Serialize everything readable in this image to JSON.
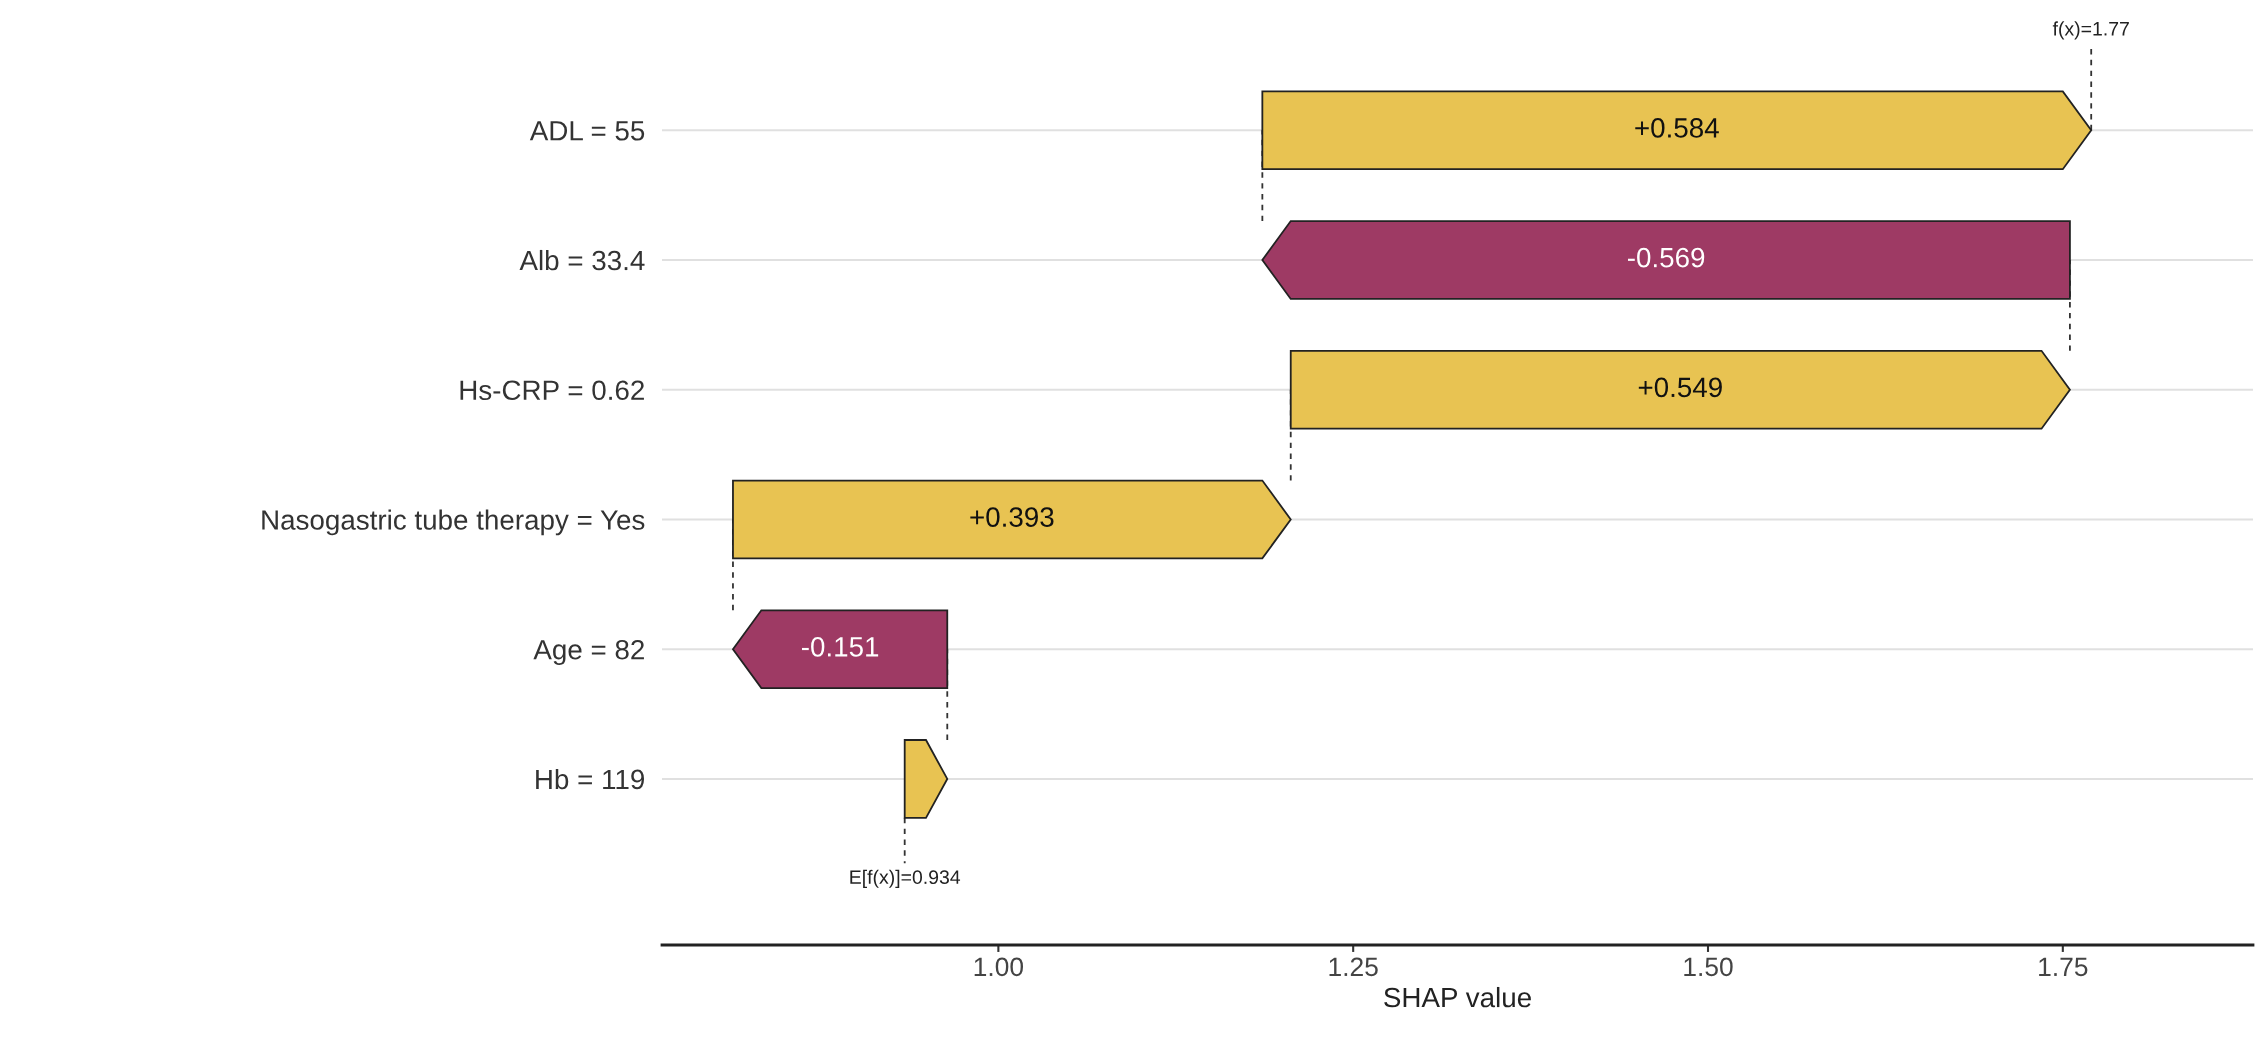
{
  "chart_data": {
    "type": "bar",
    "orientation": "horizontal",
    "xlabel": "SHAP value",
    "categories": [
      "ADL = 55",
      "Alb = 33.4",
      "Hs-CRP = 0.62",
      "Nasogastric tube therapy = Yes",
      "Age = 82",
      "Hb = 119"
    ],
    "base": [
      1.186,
      1.755,
      1.206,
      0.813,
      0.964,
      0.934
    ],
    "values": [
      0.584,
      -0.569,
      0.549,
      0.393,
      -0.151,
      0.03
    ],
    "value_labels": [
      "+0.584",
      "-0.569",
      "+0.549",
      "+0.393",
      "-0.151",
      null
    ],
    "colors": [
      "#e8c352",
      "#9e3a64",
      "#e8c352",
      "#e8c352",
      "#9e3a64",
      "#e8c352"
    ],
    "xlim": [
      0.763,
      1.884
    ],
    "xticks": [
      {
        "value": 1.0,
        "label": "1.00"
      },
      {
        "value": 1.25,
        "label": "1.25"
      },
      {
        "value": 1.5,
        "label": "1.50"
      },
      {
        "value": 1.75,
        "label": "1.75"
      }
    ],
    "grid": "y",
    "ref_lines": [
      {
        "axis": "x",
        "value": 0.934,
        "label": "E[f(x)]=0.934",
        "line_style": "dashed"
      }
    ],
    "annotations": [
      {
        "text": "f(x)=1.77",
        "x": 1.77,
        "y": "ADL = 55"
      }
    ]
  }
}
